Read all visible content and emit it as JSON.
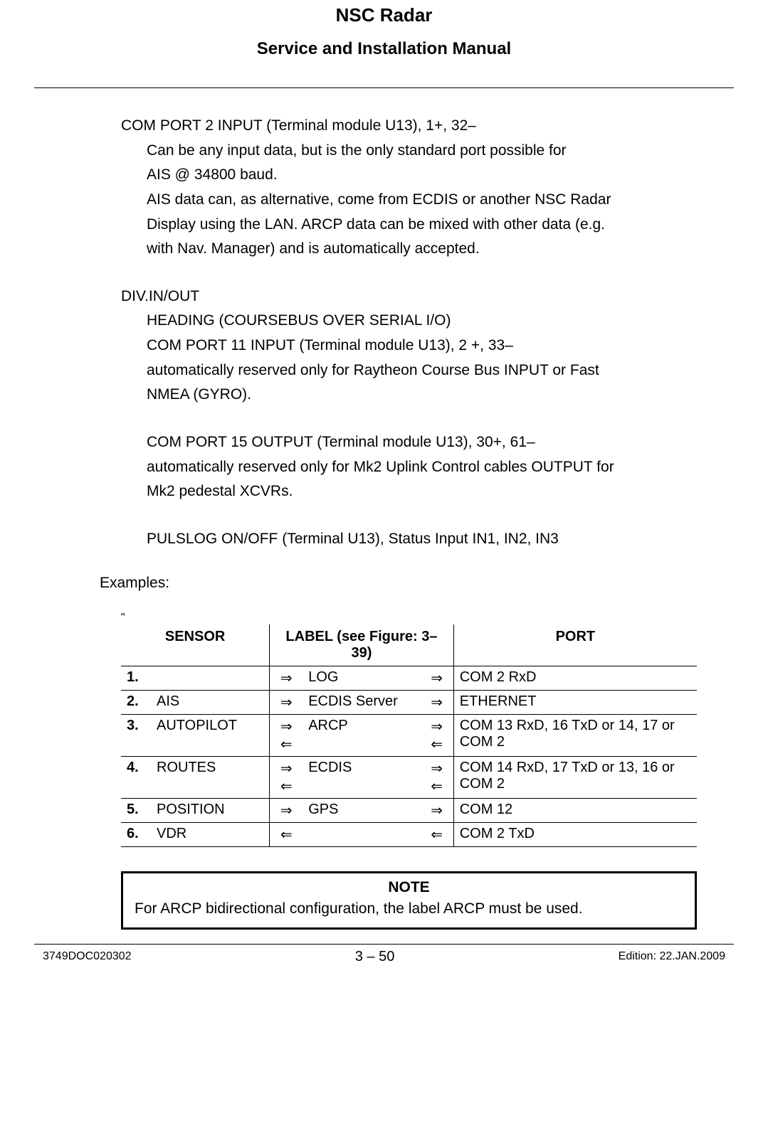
{
  "header": {
    "title": "NSC Radar",
    "subtitle": "Service and Installation Manual"
  },
  "body": {
    "p1_line1": "COM PORT 2 INPUT (Terminal module U13), 1+, 32–",
    "p1_ind1": "Can be any input data, but is the only standard port possible for",
    "p1_ind2": "AIS @ 34800 baud.",
    "p1_ind3": "AIS data can, as alternative, come from ECDIS or another NSC Radar",
    "p1_ind4": "Display using the LAN.     ARCP data can be mixed with other data (e.g.",
    "p1_ind5": "with Nav. Manager) and is automatically accepted.",
    "p2_line1": "DIV.IN/OUT",
    "p2_ind1": "HEADING (COURSEBUS OVER SERIAL I/O)",
    "p2_ind2": "COM PORT 11 INPUT (Terminal module U13), 2 +, 33–",
    "p2_ind3": "automatically reserved only for Raytheon Course Bus INPUT or Fast",
    "p2_ind4": "NMEA (GYRO).",
    "p3_ind1": "COM PORT 15 OUTPUT (Terminal module U13), 30+, 61–",
    "p3_ind2": "automatically reserved only for Mk2 Uplink Control cables OUTPUT for",
    "p3_ind3": "Mk2 pedestal XCVRs.",
    "p4_ind1": "PULSLOG ON/OFF (Terminal U13), Status Input IN1, IN2, IN3",
    "examples_label": "Examples:"
  },
  "table": {
    "headers": {
      "sensor": "SENSOR",
      "label": "LABEL (see Figure: 3–39)",
      "port": "PORT"
    },
    "arrows": {
      "right": "⇒",
      "left": "⇐"
    },
    "rows": [
      {
        "num": "1.",
        "sensor": "",
        "arr_l": "⇒",
        "label": "LOG",
        "arr_r": "⇒",
        "port": "COM 2 RxD"
      },
      {
        "num": "2.",
        "sensor": "AIS",
        "arr_l": "⇒",
        "label": "ECDIS Server",
        "arr_r": "⇒",
        "port": "ETHERNET"
      },
      {
        "num": "3.",
        "sensor": "AUTOPILOT",
        "arr_l": "⇒\n⇐",
        "label": "ARCP",
        "arr_r": "⇒\n⇐",
        "port": "COM 13 RxD, 16 TxD or 14, 17 or COM 2"
      },
      {
        "num": "4.",
        "sensor": "ROUTES",
        "arr_l": "⇒\n⇐",
        "label": "ECDIS",
        "arr_r": "⇒\n⇐",
        "port": "COM 14 RxD, 17 TxD or 13, 16 or COM 2"
      },
      {
        "num": "5.",
        "sensor": "POSITION",
        "arr_l": "⇒",
        "label": "GPS",
        "arr_r": "⇒",
        "port": "COM 12"
      },
      {
        "num": "6.",
        "sensor": "VDR",
        "arr_l": "⇐",
        "label": "",
        "arr_r": "⇐",
        "port": "COM 2 TxD"
      }
    ]
  },
  "note": {
    "title": "NOTE",
    "text": "For ARCP bidirectional configuration, the label ARCP must be used."
  },
  "footer": {
    "left": "3749DOC020302",
    "center": "3 – 50",
    "right": "Edition: 22.JAN.2009"
  }
}
